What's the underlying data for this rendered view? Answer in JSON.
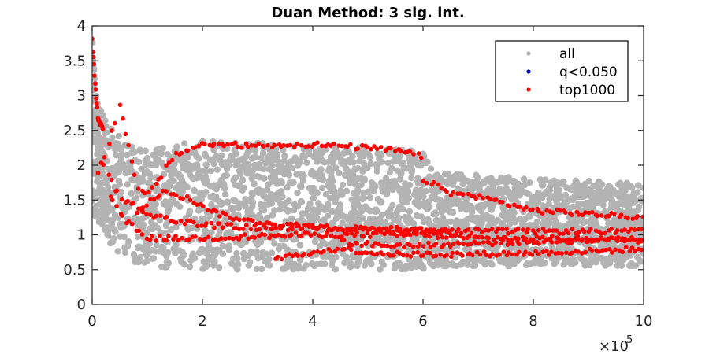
{
  "chart_data": {
    "type": "scatter",
    "title": "Duan Method: 3 sig. int.",
    "xlabel": "",
    "ylabel": "",
    "x_multiplier_label": "×10",
    "x_multiplier_exponent": "5",
    "xlim": [
      0,
      1000000
    ],
    "ylim": [
      0,
      4
    ],
    "x_ticks": [
      0,
      200000,
      400000,
      600000,
      800000,
      1000000
    ],
    "x_tick_labels": [
      "0",
      "2",
      "4",
      "6",
      "8",
      "10"
    ],
    "y_ticks": [
      0,
      0.5,
      1,
      1.5,
      2,
      2.5,
      3,
      3.5,
      4
    ],
    "y_tick_labels": [
      "0",
      "0.5",
      "1",
      "1.5",
      "2",
      "2.5",
      "3",
      "3.5",
      "4"
    ],
    "grid": false,
    "legend_position": "top-right",
    "series": [
      {
        "name": "all",
        "color": "#b3b3b3",
        "description_band": {
          "x": [
            0,
            10000,
            30000,
            60000,
            100000,
            200000,
            400000,
            600000,
            620000,
            800000,
            1000000
          ],
          "upper": [
            3.9,
            2.9,
            2.6,
            2.3,
            2.25,
            2.35,
            2.3,
            2.2,
            1.9,
            1.8,
            1.75
          ],
          "lower": [
            1.3,
            1.2,
            0.9,
            0.65,
            0.55,
            0.5,
            0.5,
            0.5,
            0.55,
            0.55,
            0.55
          ]
        }
      },
      {
        "name": "q<0.050",
        "color": "#0000cc",
        "points": []
      },
      {
        "name": "top1000",
        "color": "#ff0000",
        "tracks": [
          {
            "x": [
              0,
              5000,
              10000,
              20000
            ],
            "y": [
              3.85,
              3.2,
              2.7,
              2.5
            ]
          },
          {
            "x": [
              10000,
              30000,
              50000,
              80000,
              100000,
              150000,
              200000,
              300000,
              400000,
              500000,
              560000,
              600000
            ],
            "y": [
              1.9,
              2.3,
              2.9,
              1.7,
              1.55,
              2.15,
              2.3,
              2.28,
              2.3,
              2.25,
              2.2,
              2.12
            ]
          },
          {
            "x": [
              600000,
              650000,
              700000,
              800000,
              900000,
              1000000
            ],
            "y": [
              1.8,
              1.6,
              1.55,
              1.35,
              1.3,
              1.25
            ]
          },
          {
            "x": [
              20000,
              50000,
              100000,
              150000,
              200000,
              250000,
              300000,
              400000,
              500000,
              600000,
              700000,
              800000,
              900000,
              1000000
            ],
            "y": [
              2.0,
              1.55,
              1.3,
              1.2,
              1.15,
              1.12,
              1.1,
              1.1,
              1.08,
              1.05,
              1.05,
              1.05,
              1.05,
              1.05
            ]
          },
          {
            "x": [
              30000,
              60000,
              100000,
              150000,
              200000,
              300000,
              400000,
              500000,
              600000,
              700000,
              800000,
              900000,
              1000000
            ],
            "y": [
              1.6,
              1.2,
              0.95,
              0.95,
              0.95,
              0.98,
              1.0,
              1.0,
              1.0,
              0.95,
              0.95,
              0.95,
              0.92
            ]
          },
          {
            "x": [
              80000,
              130000,
              180000,
              230000,
              280000,
              350000,
              450000,
              550000,
              650000
            ],
            "y": [
              1.3,
              1.65,
              1.5,
              1.3,
              1.2,
              1.15,
              1.1,
              1.08,
              1.05
            ]
          },
          {
            "x": [
              330000,
              400000,
              450000,
              500000,
              550000,
              650000,
              750000,
              850000,
              950000,
              1000000
            ],
            "y": [
              0.65,
              0.75,
              0.8,
              0.75,
              0.72,
              0.72,
              0.73,
              0.75,
              0.78,
              0.8
            ]
          },
          {
            "x": [
              450000,
              520000,
              600000,
              700000,
              800000,
              900000,
              1000000
            ],
            "y": [
              0.9,
              0.85,
              0.85,
              0.88,
              0.9,
              0.92,
              0.95
            ]
          }
        ]
      }
    ]
  }
}
